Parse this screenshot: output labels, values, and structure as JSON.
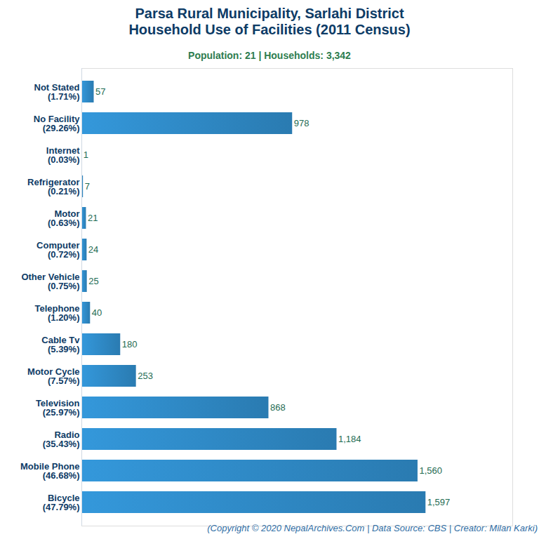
{
  "chart_data": {
    "type": "bar",
    "orientation": "horizontal",
    "title": "Parsa Rural Municipality, Sarlahi District\nHousehold Use of Facilities (2011 Census)",
    "subtitle": "Population: 21 | Households: 3,342",
    "caption": "(Copyright © 2020 NepalArchives.Com | Data Source: CBS | Creator: Milan Karki)",
    "categories": [
      "Not Stated\n(1.71%)",
      "No Facility\n(29.26%)",
      "Internet\n(0.03%)",
      "Refrigerator\n(0.21%)",
      "Motor\n(0.63%)",
      "Computer\n(0.72%)",
      "Other Vehicle\n(0.75%)",
      "Telephone\n(1.20%)",
      "Cable Tv\n(5.39%)",
      "Motor Cycle\n(7.57%)",
      "Television\n(25.97%)",
      "Radio\n(35.43%)",
      "Mobile Phone\n(46.68%)",
      "Bicycle\n(47.79%)"
    ],
    "values": [
      57,
      978,
      1,
      7,
      21,
      24,
      25,
      40,
      180,
      253,
      868,
      1184,
      1560,
      1597
    ],
    "value_labels": [
      "57",
      "978",
      "1",
      "7",
      "21",
      "24",
      "25",
      "40",
      "180",
      "253",
      "868",
      "1,184",
      "1,560",
      "1,597"
    ],
    "color": "#3498db",
    "xlim": [
      0,
      2000
    ],
    "xticks": [],
    "grid": false,
    "data_labels": true,
    "tick_labels": "y"
  }
}
